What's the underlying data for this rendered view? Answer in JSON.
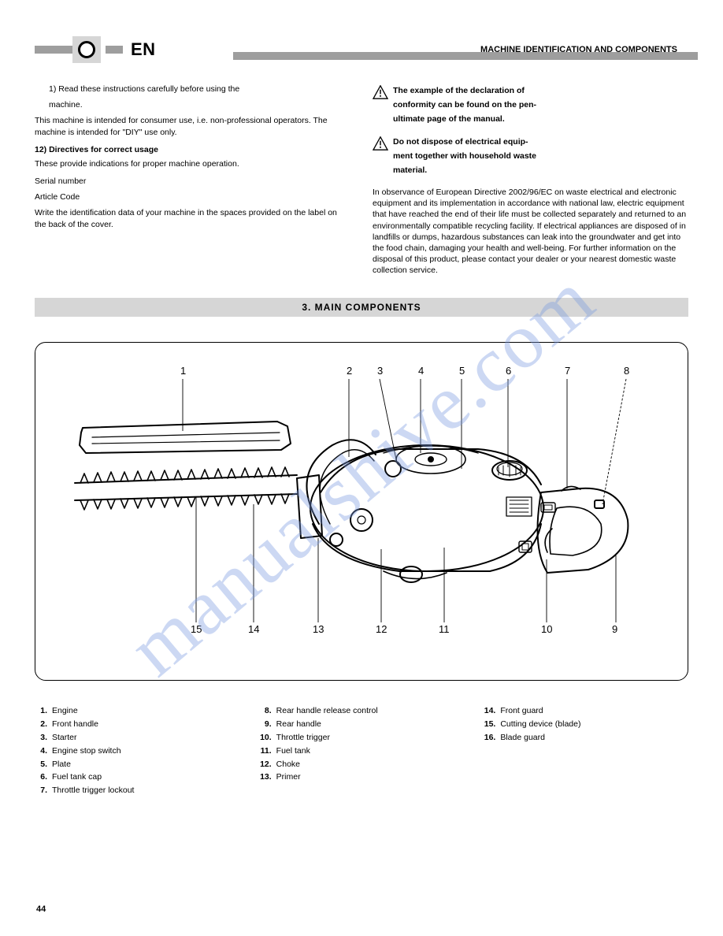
{
  "header": {
    "lang_code": "EN",
    "page_title": "MACHINE IDENTIFICATION AND COMPONENTS"
  },
  "left_col": {
    "intro_line1": "1) Read these instructions carefully before using the",
    "intro_line2": "machine.",
    "para1": "This machine is intended for consumer use, i.e. non-professional operators. The machine is intended for \"DIY\" use only.",
    "heading_12": "12) Directives for correct usage",
    "para2": "These provide indications for proper machine operation.",
    "label_sn": "Serial number",
    "label_code": "Article Code",
    "para3": "Write the identification data of your machine in the spaces provided on the label on the back of the cover."
  },
  "right_col": {
    "warn1_l1": "The example of the declaration of",
    "warn1_l2": "conformity can be found on the pen-",
    "warn1_l3": "ultimate page of the manual.",
    "warn2_l1": "Do not dispose of electrical equip-",
    "warn2_l2": "ment together with household waste",
    "warn2_l3": "material.",
    "para1": "In observance of European Directive 2002/96/EC on waste electrical and electronic equipment and its implementation in accordance with national law, electric equipment that have reached the end of their life must be collected separately and returned to an environmentally compatible recycling facility. If electrical appliances are disposed of in landfills or dumps, hazardous substances can leak into the groundwater and get into the food chain, damaging your health and well-being. For further information on the disposal of this product, please contact your dealer or your nearest domestic waste collection service."
  },
  "section3": {
    "title": "3. MAIN COMPONENTS"
  },
  "figure": {
    "top_numbers": [
      "1",
      "2",
      "3",
      "4",
      "5",
      "6",
      "7",
      "8"
    ],
    "bottom_numbers": [
      "15",
      "14",
      "13",
      "12",
      "11",
      "10",
      "9"
    ],
    "line_color": "#000000",
    "bg": "#ffffff"
  },
  "legend": {
    "col1": [
      {
        "n": "1.",
        "t": "Engine"
      },
      {
        "n": "2.",
        "t": "Front handle"
      },
      {
        "n": "3.",
        "t": "Starter"
      },
      {
        "n": "4.",
        "t": "Engine stop switch"
      },
      {
        "n": "5.",
        "t": "Plate"
      },
      {
        "n": "6.",
        "t": "Fuel tank cap"
      },
      {
        "n": "7.",
        "t": "Throttle trigger lockout"
      }
    ],
    "col2": [
      {
        "n": "8.",
        "t": "Rear handle release control"
      },
      {
        "n": "9.",
        "t": "Rear handle"
      },
      {
        "n": "10.",
        "t": "Throttle trigger"
      },
      {
        "n": "11.",
        "t": "Fuel tank"
      },
      {
        "n": "12.",
        "t": "Choke"
      },
      {
        "n": "13.",
        "t": "Primer"
      }
    ],
    "col3": [
      {
        "n": "14.",
        "t": "Front guard"
      },
      {
        "n": "15.",
        "t": "Cutting device (blade)"
      },
      {
        "n": "16.",
        "t": "Blade guard"
      }
    ]
  },
  "watermark": "manualshive.com",
  "page_number": "44"
}
